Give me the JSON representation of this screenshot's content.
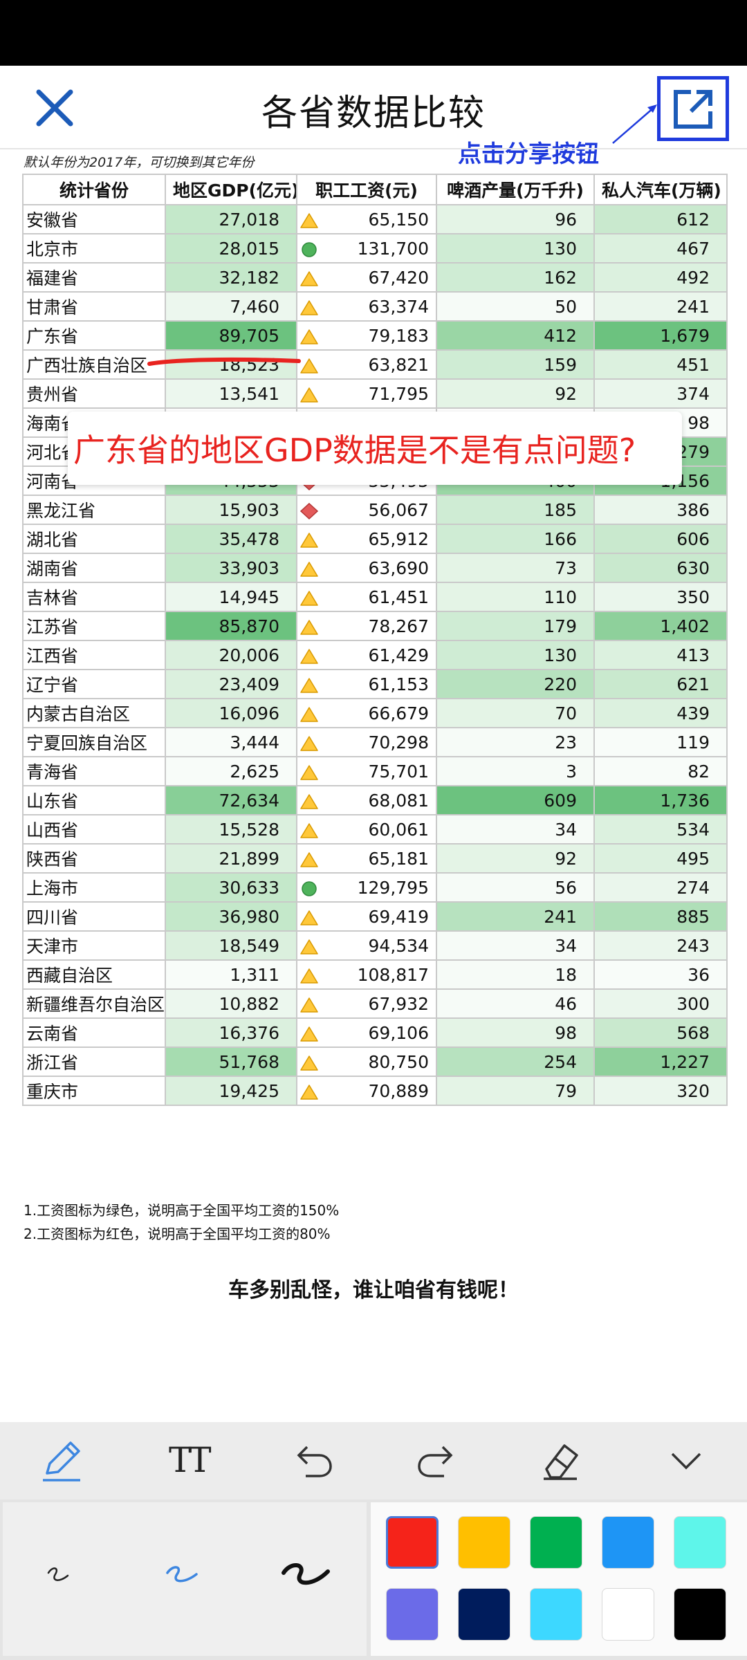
{
  "header": {
    "title": "各省数据比较",
    "share_hint": "点击分享按钮",
    "close_icon": "close-icon",
    "share_icon": "share-external-icon"
  },
  "note_top": "默认年份为2017年，可切换到其它年份",
  "overlay_note": "广东省的地区GDP数据是不是有点问题?",
  "table": {
    "headers": [
      "统计省份",
      "地区GDP(亿元)",
      "职工工资(元)",
      "啤酒产量(万千升)",
      "私人汽车(万辆)"
    ],
    "rows": [
      {
        "name": "安徽省",
        "gdp": "27,018",
        "wage": "65,150",
        "wage_icon": "warning-triangle-icon",
        "beer": "96",
        "cars": "612"
      },
      {
        "name": "北京市",
        "gdp": "28,015",
        "wage": "131,700",
        "wage_icon": "green-circle-icon",
        "beer": "130",
        "cars": "467"
      },
      {
        "name": "福建省",
        "gdp": "32,182",
        "wage": "67,420",
        "wage_icon": "warning-triangle-icon",
        "beer": "162",
        "cars": "492"
      },
      {
        "name": "甘肃省",
        "gdp": "7,460",
        "wage": "63,374",
        "wage_icon": "warning-triangle-icon",
        "beer": "50",
        "cars": "241"
      },
      {
        "name": "广东省",
        "gdp": "89,705",
        "wage": "79,183",
        "wage_icon": "warning-triangle-icon",
        "beer": "412",
        "cars": "1,679"
      },
      {
        "name": "广西壮族自治区",
        "gdp": "18,523",
        "wage": "63,821",
        "wage_icon": "warning-triangle-icon",
        "beer": "159",
        "cars": "451"
      },
      {
        "name": "贵州省",
        "gdp": "13,541",
        "wage": "71,795",
        "wage_icon": "warning-triangle-icon",
        "beer": "92",
        "cars": "374"
      },
      {
        "name": "海南省",
        "gdp": "",
        "wage": "",
        "wage_icon": "",
        "beer": "",
        "cars": "98"
      },
      {
        "name": "河北省",
        "gdp": "",
        "wage": "",
        "wage_icon": "",
        "beer": "",
        "cars": "1,279"
      },
      {
        "name": "河南省",
        "gdp": "44,553",
        "wage": "55,495",
        "wage_icon": "red-diamond-icon",
        "beer": "400",
        "cars": "1,156"
      },
      {
        "name": "黑龙江省",
        "gdp": "15,903",
        "wage": "56,067",
        "wage_icon": "red-diamond-icon",
        "beer": "185",
        "cars": "386"
      },
      {
        "name": "湖北省",
        "gdp": "35,478",
        "wage": "65,912",
        "wage_icon": "warning-triangle-icon",
        "beer": "166",
        "cars": "606"
      },
      {
        "name": "湖南省",
        "gdp": "33,903",
        "wage": "63,690",
        "wage_icon": "warning-triangle-icon",
        "beer": "73",
        "cars": "630"
      },
      {
        "name": "吉林省",
        "gdp": "14,945",
        "wage": "61,451",
        "wage_icon": "warning-triangle-icon",
        "beer": "110",
        "cars": "350"
      },
      {
        "name": "江苏省",
        "gdp": "85,870",
        "wage": "78,267",
        "wage_icon": "warning-triangle-icon",
        "beer": "179",
        "cars": "1,402"
      },
      {
        "name": "江西省",
        "gdp": "20,006",
        "wage": "61,429",
        "wage_icon": "warning-triangle-icon",
        "beer": "130",
        "cars": "413"
      },
      {
        "name": "辽宁省",
        "gdp": "23,409",
        "wage": "61,153",
        "wage_icon": "warning-triangle-icon",
        "beer": "220",
        "cars": "621"
      },
      {
        "name": "内蒙古自治区",
        "gdp": "16,096",
        "wage": "66,679",
        "wage_icon": "warning-triangle-icon",
        "beer": "70",
        "cars": "439"
      },
      {
        "name": "宁夏回族自治区",
        "gdp": "3,444",
        "wage": "70,298",
        "wage_icon": "warning-triangle-icon",
        "beer": "23",
        "cars": "119"
      },
      {
        "name": "青海省",
        "gdp": "2,625",
        "wage": "75,701",
        "wage_icon": "warning-triangle-icon",
        "beer": "3",
        "cars": "82"
      },
      {
        "name": "山东省",
        "gdp": "72,634",
        "wage": "68,081",
        "wage_icon": "warning-triangle-icon",
        "beer": "609",
        "cars": "1,736"
      },
      {
        "name": "山西省",
        "gdp": "15,528",
        "wage": "60,061",
        "wage_icon": "warning-triangle-icon",
        "beer": "34",
        "cars": "534"
      },
      {
        "name": "陕西省",
        "gdp": "21,899",
        "wage": "65,181",
        "wage_icon": "warning-triangle-icon",
        "beer": "92",
        "cars": "495"
      },
      {
        "name": "上海市",
        "gdp": "30,633",
        "wage": "129,795",
        "wage_icon": "green-circle-icon",
        "beer": "56",
        "cars": "274"
      },
      {
        "name": "四川省",
        "gdp": "36,980",
        "wage": "69,419",
        "wage_icon": "warning-triangle-icon",
        "beer": "241",
        "cars": "885"
      },
      {
        "name": "天津市",
        "gdp": "18,549",
        "wage": "94,534",
        "wage_icon": "warning-triangle-icon",
        "beer": "34",
        "cars": "243"
      },
      {
        "name": "西藏自治区",
        "gdp": "1,311",
        "wage": "108,817",
        "wage_icon": "warning-triangle-icon",
        "beer": "18",
        "cars": "36"
      },
      {
        "name": "新疆维吾尔自治区",
        "gdp": "10,882",
        "wage": "67,932",
        "wage_icon": "warning-triangle-icon",
        "beer": "46",
        "cars": "300"
      },
      {
        "name": "云南省",
        "gdp": "16,376",
        "wage": "69,106",
        "wage_icon": "warning-triangle-icon",
        "beer": "98",
        "cars": "568"
      },
      {
        "name": "浙江省",
        "gdp": "51,768",
        "wage": "80,750",
        "wage_icon": "warning-triangle-icon",
        "beer": "254",
        "cars": "1,227"
      },
      {
        "name": "重庆市",
        "gdp": "19,425",
        "wage": "70,889",
        "wage_icon": "warning-triangle-icon",
        "beer": "79",
        "cars": "320"
      }
    ]
  },
  "footnotes": [
    "1.工资图标为绿色，说明高于全国平均工资的150%",
    "2.工资图标为红色，说明高于全国平均工资的80%"
  ],
  "closing": "车多别乱怪，谁让咱省有钱呢！",
  "toolbar": {
    "tools": [
      "pencil-icon",
      "text-size-icon",
      "undo-icon",
      "redo-icon",
      "eraser-icon",
      "collapse-chevron-icon"
    ],
    "text_tool_label": "TT",
    "active_tool": "pencil-icon"
  },
  "pens": {
    "sizes": [
      "thin",
      "medium",
      "thick"
    ],
    "selected": "medium"
  },
  "colors": {
    "swatches": [
      "#f5231a",
      "#ffbf00",
      "#00b050",
      "#1e95f5",
      "#5ef5ea",
      "#6b6be8",
      "#001c5c",
      "#3dd8ff",
      "#ffffff",
      "#000000"
    ],
    "selected": "#f5231a",
    "accent_share": "#1f3bdd",
    "annotation_red": "#e8231f"
  }
}
